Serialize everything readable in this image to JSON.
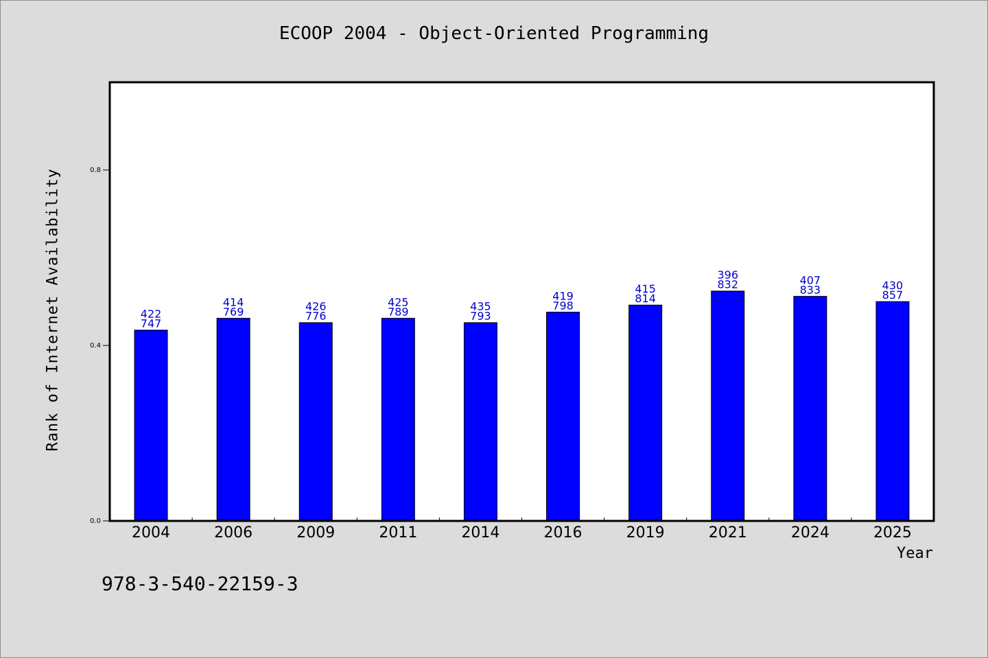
{
  "chart_data": {
    "type": "bar",
    "title": "ECOOP 2004 - Object-Oriented Programming",
    "xlabel": "Year",
    "ylabel": "Rank of Internet Availability",
    "footnote": "978-3-540-22159-3",
    "categories": [
      "2004",
      "2006",
      "2009",
      "2011",
      "2014",
      "2016",
      "2019",
      "2021",
      "2024",
      "2025"
    ],
    "series": [
      {
        "values": [
          0.435,
          0.462,
          0.452,
          0.462,
          0.452,
          0.476,
          0.492,
          0.524,
          0.512,
          0.5
        ]
      }
    ],
    "bar_labels": [
      [
        "422",
        "747"
      ],
      [
        "414",
        "769"
      ],
      [
        "426",
        "776"
      ],
      [
        "425",
        "789"
      ],
      [
        "435",
        "793"
      ],
      [
        "419",
        "798"
      ],
      [
        "415",
        "814"
      ],
      [
        "396",
        "832"
      ],
      [
        "407",
        "833"
      ],
      [
        "430",
        "857"
      ]
    ],
    "yticks": [
      "0.0",
      "0.4",
      "0.8"
    ],
    "ylim": [
      0,
      1.0
    ],
    "grid": false,
    "colors": {
      "bar": "#0000ff",
      "bar_label": "#0000cc",
      "background": "#dcdcdc",
      "plot_background": "#ffffff"
    }
  }
}
